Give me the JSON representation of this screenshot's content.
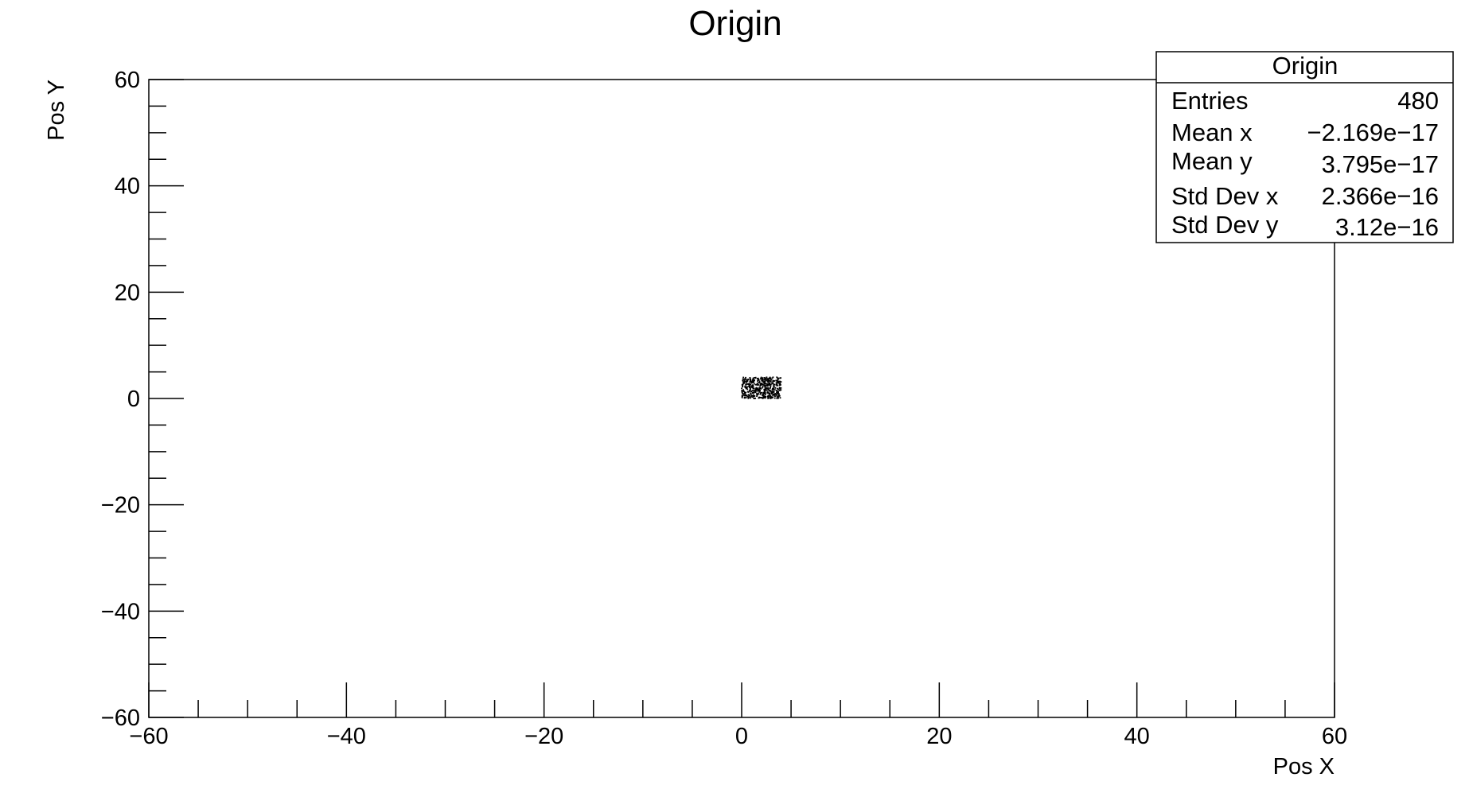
{
  "chart_data": {
    "type": "scatter",
    "title": "Origin",
    "xlabel": "Pos X",
    "ylabel": "Pos Y",
    "xlim": [
      -60,
      60
    ],
    "ylim": [
      -60,
      60
    ],
    "x_ticks": [
      -60,
      -40,
      -20,
      0,
      20,
      40,
      60
    ],
    "y_ticks": [
      -60,
      -40,
      -20,
      0,
      20,
      40,
      60
    ],
    "x_tick_labels": [
      "−60",
      "−40",
      "−20",
      "0",
      "20",
      "40",
      "60"
    ],
    "y_tick_labels": [
      "−60",
      "−40",
      "−20",
      "0",
      "20",
      "40",
      "60"
    ],
    "grid": false,
    "legend_placement": "top-right",
    "point_region": {
      "x": [
        0,
        4
      ],
      "y": [
        0,
        4
      ]
    },
    "entries": 480,
    "stats_box": {
      "title": "Origin",
      "rows": [
        {
          "label": "Entries",
          "value": "480"
        },
        {
          "label": "Mean x",
          "value": "−2.169e−17"
        },
        {
          "label": "Mean y",
          "value": "3.795e−17"
        },
        {
          "label": "Std Dev x",
          "value": "2.366e−16"
        },
        {
          "label": "Std Dev y",
          "value": "3.12e−16"
        }
      ]
    },
    "colors": {
      "marker": "#000000",
      "frame": "#000000",
      "background": "#ffffff"
    }
  }
}
